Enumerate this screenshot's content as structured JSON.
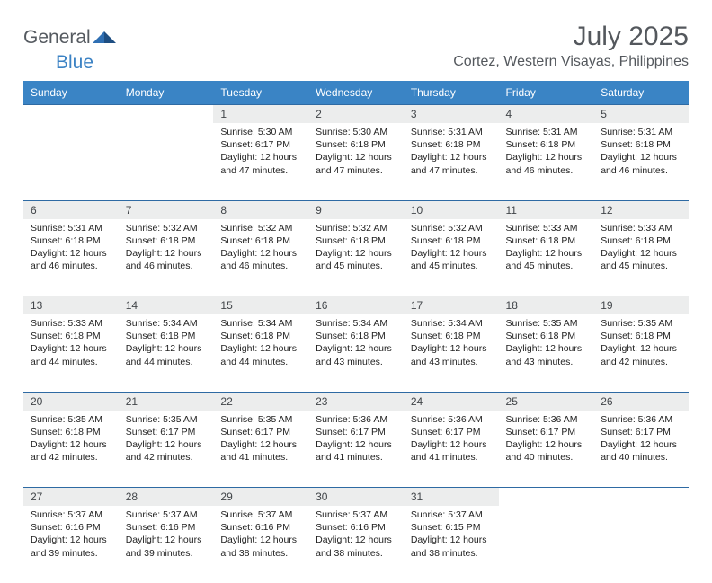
{
  "logo": {
    "general": "General",
    "blue": "Blue"
  },
  "title": "July 2025",
  "location": "Cortez, Western Visayas, Philippines",
  "colors": {
    "header_bg": "#3a84c5",
    "header_fg": "#ffffff",
    "daynum_bg": "#eceded",
    "daynum_border": "#2e6aa3",
    "text": "#222222",
    "title_color": "#54585d",
    "logo_gray": "#555a60",
    "logo_blue": "#3b82c4"
  },
  "weekdays": [
    "Sunday",
    "Monday",
    "Tuesday",
    "Wednesday",
    "Thursday",
    "Friday",
    "Saturday"
  ],
  "weeks": [
    [
      null,
      null,
      {
        "n": "1",
        "sr": "5:30 AM",
        "ss": "6:17 PM",
        "dl": "12 hours and 47 minutes."
      },
      {
        "n": "2",
        "sr": "5:30 AM",
        "ss": "6:18 PM",
        "dl": "12 hours and 47 minutes."
      },
      {
        "n": "3",
        "sr": "5:31 AM",
        "ss": "6:18 PM",
        "dl": "12 hours and 47 minutes."
      },
      {
        "n": "4",
        "sr": "5:31 AM",
        "ss": "6:18 PM",
        "dl": "12 hours and 46 minutes."
      },
      {
        "n": "5",
        "sr": "5:31 AM",
        "ss": "6:18 PM",
        "dl": "12 hours and 46 minutes."
      }
    ],
    [
      {
        "n": "6",
        "sr": "5:31 AM",
        "ss": "6:18 PM",
        "dl": "12 hours and 46 minutes."
      },
      {
        "n": "7",
        "sr": "5:32 AM",
        "ss": "6:18 PM",
        "dl": "12 hours and 46 minutes."
      },
      {
        "n": "8",
        "sr": "5:32 AM",
        "ss": "6:18 PM",
        "dl": "12 hours and 46 minutes."
      },
      {
        "n": "9",
        "sr": "5:32 AM",
        "ss": "6:18 PM",
        "dl": "12 hours and 45 minutes."
      },
      {
        "n": "10",
        "sr": "5:32 AM",
        "ss": "6:18 PM",
        "dl": "12 hours and 45 minutes."
      },
      {
        "n": "11",
        "sr": "5:33 AM",
        "ss": "6:18 PM",
        "dl": "12 hours and 45 minutes."
      },
      {
        "n": "12",
        "sr": "5:33 AM",
        "ss": "6:18 PM",
        "dl": "12 hours and 45 minutes."
      }
    ],
    [
      {
        "n": "13",
        "sr": "5:33 AM",
        "ss": "6:18 PM",
        "dl": "12 hours and 44 minutes."
      },
      {
        "n": "14",
        "sr": "5:34 AM",
        "ss": "6:18 PM",
        "dl": "12 hours and 44 minutes."
      },
      {
        "n": "15",
        "sr": "5:34 AM",
        "ss": "6:18 PM",
        "dl": "12 hours and 44 minutes."
      },
      {
        "n": "16",
        "sr": "5:34 AM",
        "ss": "6:18 PM",
        "dl": "12 hours and 43 minutes."
      },
      {
        "n": "17",
        "sr": "5:34 AM",
        "ss": "6:18 PM",
        "dl": "12 hours and 43 minutes."
      },
      {
        "n": "18",
        "sr": "5:35 AM",
        "ss": "6:18 PM",
        "dl": "12 hours and 43 minutes."
      },
      {
        "n": "19",
        "sr": "5:35 AM",
        "ss": "6:18 PM",
        "dl": "12 hours and 42 minutes."
      }
    ],
    [
      {
        "n": "20",
        "sr": "5:35 AM",
        "ss": "6:18 PM",
        "dl": "12 hours and 42 minutes."
      },
      {
        "n": "21",
        "sr": "5:35 AM",
        "ss": "6:17 PM",
        "dl": "12 hours and 42 minutes."
      },
      {
        "n": "22",
        "sr": "5:35 AM",
        "ss": "6:17 PM",
        "dl": "12 hours and 41 minutes."
      },
      {
        "n": "23",
        "sr": "5:36 AM",
        "ss": "6:17 PM",
        "dl": "12 hours and 41 minutes."
      },
      {
        "n": "24",
        "sr": "5:36 AM",
        "ss": "6:17 PM",
        "dl": "12 hours and 41 minutes."
      },
      {
        "n": "25",
        "sr": "5:36 AM",
        "ss": "6:17 PM",
        "dl": "12 hours and 40 minutes."
      },
      {
        "n": "26",
        "sr": "5:36 AM",
        "ss": "6:17 PM",
        "dl": "12 hours and 40 minutes."
      }
    ],
    [
      {
        "n": "27",
        "sr": "5:37 AM",
        "ss": "6:16 PM",
        "dl": "12 hours and 39 minutes."
      },
      {
        "n": "28",
        "sr": "5:37 AM",
        "ss": "6:16 PM",
        "dl": "12 hours and 39 minutes."
      },
      {
        "n": "29",
        "sr": "5:37 AM",
        "ss": "6:16 PM",
        "dl": "12 hours and 38 minutes."
      },
      {
        "n": "30",
        "sr": "5:37 AM",
        "ss": "6:16 PM",
        "dl": "12 hours and 38 minutes."
      },
      {
        "n": "31",
        "sr": "5:37 AM",
        "ss": "6:15 PM",
        "dl": "12 hours and 38 minutes."
      },
      null,
      null
    ]
  ],
  "labels": {
    "sunrise": "Sunrise:",
    "sunset": "Sunset:",
    "daylight": "Daylight:"
  }
}
